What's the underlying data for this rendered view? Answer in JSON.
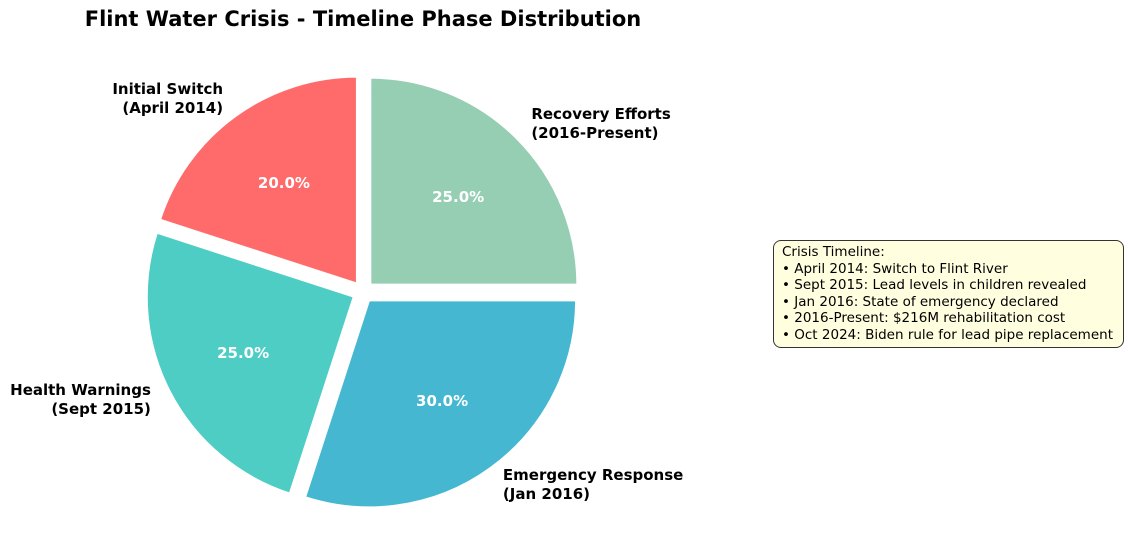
{
  "title": "Flint Water Crisis - Timeline Phase Distribution",
  "chart_data": {
    "type": "pie",
    "title": "Flint Water Crisis - Timeline Phase Distribution",
    "start_angle": 90,
    "counterclock": true,
    "explode": 0.05,
    "pctdistance": 0.6,
    "labeldistance": 1.1,
    "slices": [
      {
        "name": "Initial Switch",
        "period": "(April 2014)",
        "value": 20.0,
        "pct_label": "20.0%",
        "color": "#FF6B6B"
      },
      {
        "name": "Health Warnings",
        "period": "(Sept 2015)",
        "value": 25.0,
        "pct_label": "25.0%",
        "color": "#4ECDC4"
      },
      {
        "name": "Emergency Response",
        "period": "(Jan 2016)",
        "value": 30.0,
        "pct_label": "30.0%",
        "color": "#45B7D1"
      },
      {
        "name": "Recovery Efforts",
        "period": "(2016-Present)",
        "value": 25.0,
        "pct_label": "25.0%",
        "color": "#96CEB4"
      }
    ]
  },
  "annotation_box": {
    "background": "#FFFFE0",
    "border_color": "#333333",
    "bullet": "•",
    "title": "Crisis Timeline:",
    "items": [
      "April 2014: Switch to Flint River",
      "Sept 2015: Lead levels in children revealed",
      "Jan 2016: State of emergency declared",
      "2016-Present: $216M rehabilitation cost",
      "Oct 2024: Biden rule for lead pipe replacement"
    ]
  }
}
